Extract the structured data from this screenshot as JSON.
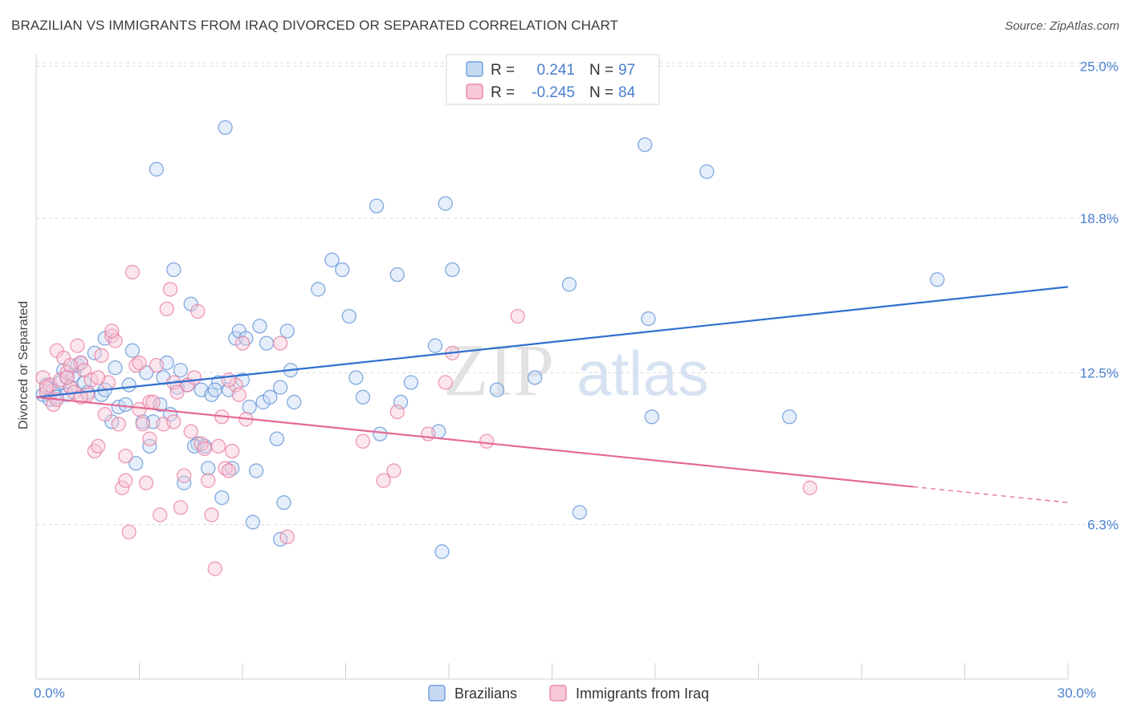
{
  "title": "BRAZILIAN VS IMMIGRANTS FROM IRAQ DIVORCED OR SEPARATED CORRELATION CHART",
  "source": "Source: ZipAtlas.com",
  "watermark": {
    "zip": "ZIP",
    "atlas": "atlas"
  },
  "colors": {
    "blue": "#5b8fd6",
    "blue_fill": "#c6d9f3",
    "blue_line": "#2f6fcf",
    "pink": "#e8799c",
    "pink_fill": "#f7c8d7",
    "pink_line": "#e46a93",
    "tick_label": "#4a7fd0",
    "grid": "#d9d9d9"
  },
  "chart_data": {
    "type": "scatter",
    "title": "BRAZILIAN VS IMMIGRANTS FROM IRAQ DIVORCED OR SEPARATED CORRELATION CHART",
    "xlabel": "",
    "ylabel": "Divorced or Separated",
    "xlim": [
      0,
      30
    ],
    "ylim": [
      0,
      26
    ],
    "x_tick_labels": [
      {
        "value": 0,
        "label": "0.0%"
      },
      {
        "value": 30,
        "label": "30.0%"
      }
    ],
    "y_tick_labels": [
      {
        "value": 6.3,
        "label": "6.3%"
      },
      {
        "value": 12.5,
        "label": "12.5%"
      },
      {
        "value": 18.8,
        "label": "18.8%"
      },
      {
        "value": 25.0,
        "label": "25.0%"
      }
    ],
    "grid": true,
    "legend": {
      "position": "top-center",
      "rows": [
        {
          "r_label": "R =",
          "r_value": "0.241",
          "n_label": "N =",
          "n_value": "97"
        },
        {
          "r_label": "R =",
          "r_value": "-0.245",
          "n_label": "N =",
          "n_value": "84"
        }
      ]
    },
    "series": [
      {
        "name": "Brazilians",
        "color": "#5b8fd6",
        "trend": {
          "x0": 0,
          "y0": 11.5,
          "x1": 30,
          "y1": 16.0,
          "dashed_from": null
        },
        "points": [
          [
            0.2,
            11.6
          ],
          [
            0.3,
            12.0
          ],
          [
            0.4,
            11.4
          ],
          [
            0.5,
            11.8
          ],
          [
            0.6,
            11.5
          ],
          [
            0.7,
            12.1
          ],
          [
            0.8,
            12.6
          ],
          [
            0.9,
            12.3
          ],
          [
            1.0,
            11.9
          ],
          [
            1.1,
            12.4
          ],
          [
            1.2,
            12.8
          ],
          [
            1.4,
            12.1
          ],
          [
            1.5,
            11.7
          ],
          [
            1.7,
            13.3
          ],
          [
            1.9,
            11.6
          ],
          [
            2.0,
            13.9
          ],
          [
            2.2,
            10.5
          ],
          [
            2.3,
            12.7
          ],
          [
            2.4,
            11.1
          ],
          [
            2.6,
            11.2
          ],
          [
            2.7,
            12.0
          ],
          [
            2.8,
            13.4
          ],
          [
            2.9,
            8.8
          ],
          [
            3.1,
            10.5
          ],
          [
            3.2,
            12.5
          ],
          [
            3.3,
            9.5
          ],
          [
            3.4,
            10.5
          ],
          [
            3.5,
            20.8
          ],
          [
            3.7,
            12.3
          ],
          [
            3.8,
            12.9
          ],
          [
            3.9,
            10.8
          ],
          [
            4.0,
            16.7
          ],
          [
            4.2,
            12.6
          ],
          [
            4.3,
            8.0
          ],
          [
            4.4,
            12.0
          ],
          [
            4.5,
            15.3
          ],
          [
            4.7,
            9.6
          ],
          [
            4.8,
            11.8
          ],
          [
            4.9,
            9.5
          ],
          [
            5.0,
            8.6
          ],
          [
            5.1,
            11.6
          ],
          [
            5.3,
            12.1
          ],
          [
            5.4,
            7.4
          ],
          [
            5.5,
            22.5
          ],
          [
            5.6,
            11.8
          ],
          [
            5.7,
            8.6
          ],
          [
            5.8,
            13.9
          ],
          [
            5.9,
            14.2
          ],
          [
            6.0,
            12.2
          ],
          [
            6.1,
            13.9
          ],
          [
            6.3,
            6.4
          ],
          [
            6.4,
            8.5
          ],
          [
            6.5,
            14.4
          ],
          [
            6.6,
            11.3
          ],
          [
            6.7,
            13.7
          ],
          [
            6.8,
            11.5
          ],
          [
            7.0,
            9.8
          ],
          [
            7.1,
            11.9
          ],
          [
            7.2,
            7.2
          ],
          [
            7.3,
            14.2
          ],
          [
            7.5,
            11.3
          ],
          [
            7.4,
            12.6
          ],
          [
            7.1,
            5.7
          ],
          [
            8.2,
            15.9
          ],
          [
            8.6,
            17.1
          ],
          [
            8.9,
            16.7
          ],
          [
            9.1,
            14.8
          ],
          [
            9.5,
            11.5
          ],
          [
            9.3,
            12.3
          ],
          [
            9.9,
            19.3
          ],
          [
            10.0,
            10.0
          ],
          [
            10.5,
            16.5
          ],
          [
            10.6,
            11.3
          ],
          [
            10.9,
            12.1
          ],
          [
            11.6,
            13.6
          ],
          [
            11.7,
            10.1
          ],
          [
            11.8,
            5.2
          ],
          [
            11.9,
            19.4
          ],
          [
            12.1,
            16.7
          ],
          [
            13.4,
            11.8
          ],
          [
            14.5,
            12.3
          ],
          [
            15.5,
            16.1
          ],
          [
            15.8,
            6.8
          ],
          [
            17.7,
            21.8
          ],
          [
            17.8,
            14.7
          ],
          [
            17.9,
            10.7
          ],
          [
            19.5,
            20.7
          ],
          [
            21.9,
            10.7
          ],
          [
            26.2,
            16.3
          ],
          [
            2.0,
            11.8
          ],
          [
            1.3,
            12.9
          ],
          [
            0.9,
            11.6
          ],
          [
            3.6,
            11.2
          ],
          [
            4.1,
            11.9
          ],
          [
            4.6,
            9.5
          ],
          [
            5.2,
            11.8
          ],
          [
            6.2,
            11.1
          ]
        ]
      },
      {
        "name": "Immigrants from Iraq",
        "color": "#e8799c",
        "trend": {
          "x0": 0,
          "y0": 11.5,
          "x1": 30,
          "y1": 7.2,
          "dashed_from": 25.5
        },
        "points": [
          [
            0.2,
            12.3
          ],
          [
            0.3,
            11.7
          ],
          [
            0.4,
            12.0
          ],
          [
            0.5,
            11.2
          ],
          [
            0.6,
            13.4
          ],
          [
            0.7,
            12.2
          ],
          [
            0.8,
            13.1
          ],
          [
            0.9,
            12.5
          ],
          [
            1.0,
            11.9
          ],
          [
            1.1,
            11.7
          ],
          [
            1.2,
            13.6
          ],
          [
            1.3,
            12.9
          ],
          [
            1.4,
            12.6
          ],
          [
            1.5,
            11.6
          ],
          [
            1.6,
            12.2
          ],
          [
            1.7,
            9.3
          ],
          [
            1.8,
            9.5
          ],
          [
            1.9,
            13.2
          ],
          [
            2.0,
            10.8
          ],
          [
            2.1,
            12.1
          ],
          [
            2.2,
            14.0
          ],
          [
            2.3,
            13.8
          ],
          [
            2.4,
            10.4
          ],
          [
            2.5,
            7.8
          ],
          [
            2.6,
            8.1
          ],
          [
            2.7,
            6.0
          ],
          [
            2.8,
            16.6
          ],
          [
            2.9,
            12.8
          ],
          [
            3.0,
            12.9
          ],
          [
            3.1,
            10.4
          ],
          [
            3.2,
            8.0
          ],
          [
            3.3,
            11.3
          ],
          [
            3.4,
            11.3
          ],
          [
            3.5,
            12.8
          ],
          [
            3.6,
            6.7
          ],
          [
            3.7,
            10.4
          ],
          [
            3.8,
            15.1
          ],
          [
            3.9,
            15.9
          ],
          [
            4.0,
            12.1
          ],
          [
            4.1,
            11.7
          ],
          [
            4.2,
            7.0
          ],
          [
            4.3,
            8.3
          ],
          [
            4.4,
            12.0
          ],
          [
            4.5,
            10.1
          ],
          [
            4.6,
            12.3
          ],
          [
            4.7,
            15.0
          ],
          [
            4.8,
            9.6
          ],
          [
            4.9,
            9.4
          ],
          [
            5.0,
            8.1
          ],
          [
            5.1,
            6.7
          ],
          [
            5.2,
            4.5
          ],
          [
            5.3,
            9.5
          ],
          [
            5.4,
            10.7
          ],
          [
            5.5,
            8.6
          ],
          [
            5.6,
            8.5
          ],
          [
            5.7,
            9.3
          ],
          [
            5.8,
            12.0
          ],
          [
            5.9,
            11.6
          ],
          [
            6.0,
            13.7
          ],
          [
            6.1,
            10.6
          ],
          [
            7.1,
            13.7
          ],
          [
            7.3,
            5.8
          ],
          [
            9.5,
            9.7
          ],
          [
            10.1,
            8.1
          ],
          [
            10.4,
            8.5
          ],
          [
            10.5,
            10.9
          ],
          [
            11.4,
            10.0
          ],
          [
            11.9,
            12.1
          ],
          [
            12.1,
            13.3
          ],
          [
            13.1,
            9.7
          ],
          [
            14.0,
            14.8
          ],
          [
            22.5,
            7.8
          ],
          [
            0.3,
            11.9
          ],
          [
            0.6,
            11.4
          ],
          [
            1.0,
            12.8
          ],
          [
            1.3,
            11.5
          ],
          [
            2.2,
            14.2
          ],
          [
            3.0,
            11.0
          ],
          [
            3.3,
            9.8
          ],
          [
            4.0,
            10.5
          ],
          [
            2.6,
            9.1
          ],
          [
            1.8,
            12.3
          ],
          [
            0.9,
            12.3
          ],
          [
            5.6,
            12.2
          ]
        ]
      }
    ]
  },
  "bottom_legend": [
    {
      "label": "Brazilians"
    },
    {
      "label": "Immigrants from Iraq"
    }
  ]
}
